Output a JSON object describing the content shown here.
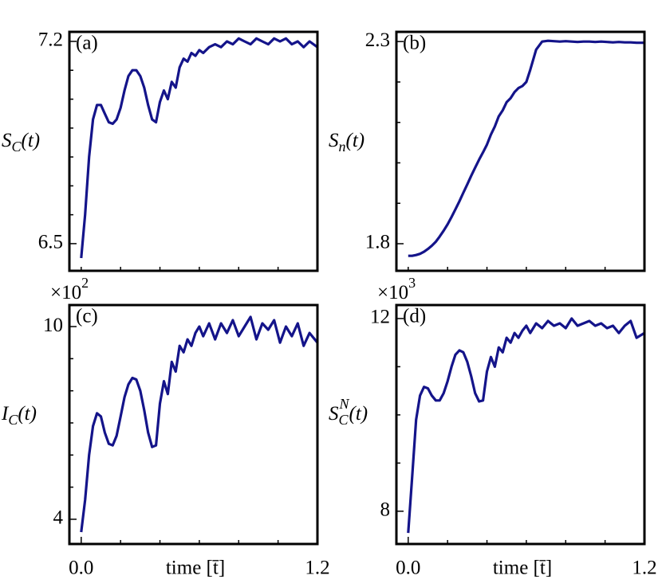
{
  "chart_data": [
    {
      "type": "line",
      "annotation": "(a)",
      "ylabel": [
        {
          "text": "S",
          "pos": "base"
        },
        {
          "text": "C",
          "pos": "sub"
        },
        {
          "text": "(t)",
          "pos": "base"
        }
      ],
      "xlim": [
        -0.06,
        1.2
      ],
      "xminorticks": [
        0,
        0.2,
        0.4,
        0.6,
        0.8,
        1.0,
        1.2
      ],
      "ylim": [
        6.406,
        7.233
      ],
      "yticks": [
        7.2,
        6.5
      ],
      "yminorticks": [
        6.6,
        6.7,
        6.8,
        6.9,
        7.0,
        7.1
      ],
      "color": "#14148a",
      "x": [
        0,
        0.02,
        0.04,
        0.06,
        0.08,
        0.1,
        0.12,
        0.14,
        0.16,
        0.18,
        0.2,
        0.22,
        0.24,
        0.26,
        0.28,
        0.3,
        0.32,
        0.34,
        0.36,
        0.38,
        0.4,
        0.42,
        0.44,
        0.46,
        0.48,
        0.5,
        0.52,
        0.54,
        0.56,
        0.58,
        0.6,
        0.62,
        0.65,
        0.68,
        0.71,
        0.74,
        0.77,
        0.8,
        0.83,
        0.86,
        0.89,
        0.92,
        0.95,
        0.98,
        1.01,
        1.04,
        1.07,
        1.1,
        1.13,
        1.16,
        1.2
      ],
      "values": [
        6.45,
        6.6,
        6.8,
        6.93,
        6.98,
        6.98,
        6.95,
        6.92,
        6.915,
        6.93,
        6.97,
        7.03,
        7.08,
        7.1,
        7.1,
        7.08,
        7.04,
        6.98,
        6.93,
        6.92,
        6.99,
        7.03,
        7.0,
        7.06,
        7.04,
        7.11,
        7.14,
        7.13,
        7.16,
        7.15,
        7.17,
        7.16,
        7.18,
        7.19,
        7.18,
        7.2,
        7.19,
        7.21,
        7.2,
        7.19,
        7.21,
        7.2,
        7.19,
        7.21,
        7.2,
        7.21,
        7.19,
        7.2,
        7.18,
        7.2,
        7.18
      ]
    },
    {
      "type": "line",
      "annotation": "(b)",
      "ylabel": [
        {
          "text": "S",
          "pos": "base"
        },
        {
          "text": "n",
          "pos": "sub"
        },
        {
          "text": "(t)",
          "pos": "base"
        }
      ],
      "xlim": [
        -0.06,
        1.2
      ],
      "xminorticks": [
        0,
        0.2,
        0.4,
        0.6,
        0.8,
        1.0,
        1.2
      ],
      "ylim": [
        1.733,
        2.324
      ],
      "yticks": [
        2.3,
        1.8
      ],
      "yminorticks": [
        1.9,
        2.0,
        2.1,
        2.2
      ],
      "color": "#14148a",
      "x": [
        0,
        0.02,
        0.04,
        0.06,
        0.08,
        0.1,
        0.12,
        0.14,
        0.16,
        0.18,
        0.2,
        0.22,
        0.24,
        0.26,
        0.28,
        0.3,
        0.32,
        0.34,
        0.36,
        0.38,
        0.4,
        0.42,
        0.44,
        0.46,
        0.48,
        0.5,
        0.52,
        0.54,
        0.56,
        0.58,
        0.6,
        0.62,
        0.65,
        0.68,
        0.71,
        0.74,
        0.77,
        0.8,
        0.83,
        0.86,
        0.89,
        0.92,
        0.95,
        0.98,
        1.01,
        1.04,
        1.07,
        1.1,
        1.13,
        1.16,
        1.2
      ],
      "values": [
        1.77,
        1.77,
        1.772,
        1.775,
        1.78,
        1.787,
        1.795,
        1.805,
        1.818,
        1.832,
        1.848,
        1.866,
        1.885,
        1.905,
        1.926,
        1.947,
        1.968,
        1.988,
        2.008,
        2.026,
        2.045,
        2.07,
        2.09,
        2.115,
        2.13,
        2.15,
        2.16,
        2.175,
        2.185,
        2.19,
        2.2,
        2.23,
        2.28,
        2.3,
        2.302,
        2.301,
        2.3,
        2.301,
        2.3,
        2.299,
        2.3,
        2.3,
        2.299,
        2.3,
        2.299,
        2.298,
        2.299,
        2.298,
        2.298,
        2.297,
        2.297
      ]
    },
    {
      "type": "line",
      "annotation": "(c)",
      "offset_text": [
        {
          "text": "×10",
          "pos": "base"
        },
        {
          "text": "2",
          "pos": "sup"
        }
      ],
      "ylabel": [
        {
          "text": "I",
          "pos": "base"
        },
        {
          "text": "C",
          "pos": "sub"
        },
        {
          "text": "(t)",
          "pos": "base"
        }
      ],
      "xlabel": "time [t̄]",
      "xlim": [
        -0.06,
        1.2
      ],
      "xticks": [
        {
          "value": 0,
          "label": "0.0"
        },
        1.2
      ],
      "xminorticks": [
        0.2,
        0.4,
        0.6,
        0.8,
        1.0
      ],
      "ylim": [
        3.23,
        10.67
      ],
      "yticks": [
        10,
        4
      ],
      "yminorticks": [
        5,
        6,
        7,
        8,
        9
      ],
      "color": "#14148a",
      "x": [
        0,
        0.02,
        0.04,
        0.06,
        0.08,
        0.1,
        0.12,
        0.14,
        0.16,
        0.18,
        0.2,
        0.22,
        0.24,
        0.26,
        0.28,
        0.3,
        0.32,
        0.34,
        0.36,
        0.38,
        0.4,
        0.42,
        0.44,
        0.46,
        0.48,
        0.5,
        0.52,
        0.54,
        0.56,
        0.58,
        0.6,
        0.62,
        0.65,
        0.68,
        0.71,
        0.74,
        0.77,
        0.8,
        0.83,
        0.86,
        0.89,
        0.92,
        0.95,
        0.98,
        1.01,
        1.04,
        1.07,
        1.1,
        1.13,
        1.16,
        1.2
      ],
      "values": [
        3.6,
        4.6,
        6.0,
        6.9,
        7.3,
        7.2,
        6.7,
        6.35,
        6.3,
        6.6,
        7.2,
        7.8,
        8.2,
        8.4,
        8.35,
        8.0,
        7.4,
        6.7,
        6.25,
        6.3,
        7.6,
        8.3,
        7.9,
        8.9,
        8.6,
        9.4,
        9.2,
        9.6,
        9.4,
        9.8,
        10.0,
        9.7,
        10.1,
        9.6,
        10.1,
        9.8,
        10.2,
        9.7,
        10.0,
        10.3,
        9.6,
        10.1,
        9.9,
        10.2,
        9.5,
        10.0,
        9.7,
        10.1,
        9.4,
        9.8,
        9.5
      ]
    },
    {
      "type": "line",
      "annotation": "(d)",
      "offset_text": [
        {
          "text": "×10",
          "pos": "base"
        },
        {
          "text": "3",
          "pos": "sup"
        }
      ],
      "ylabel": [
        {
          "text": "S",
          "pos": "base"
        },
        {
          "text": "C",
          "pos": "sub"
        },
        {
          "text": "N",
          "pos": "sup"
        },
        {
          "text": "(t)",
          "pos": "base"
        }
      ],
      "xlabel": "time [t̄]",
      "xlim": [
        -0.06,
        1.2
      ],
      "xticks": [
        {
          "value": 0,
          "label": "0.0"
        },
        1.2
      ],
      "xminorticks": [
        0.2,
        0.4,
        0.6,
        0.8,
        1.0
      ],
      "ylim": [
        7.32,
        12.28
      ],
      "yticks": [
        12,
        8
      ],
      "yminorticks": [
        9,
        10,
        11
      ],
      "color": "#14148a",
      "x": [
        0,
        0.02,
        0.04,
        0.06,
        0.08,
        0.1,
        0.12,
        0.14,
        0.16,
        0.18,
        0.2,
        0.22,
        0.24,
        0.26,
        0.28,
        0.3,
        0.32,
        0.34,
        0.36,
        0.38,
        0.4,
        0.42,
        0.44,
        0.46,
        0.48,
        0.5,
        0.52,
        0.54,
        0.56,
        0.58,
        0.6,
        0.62,
        0.65,
        0.68,
        0.71,
        0.74,
        0.77,
        0.8,
        0.83,
        0.86,
        0.89,
        0.92,
        0.95,
        0.98,
        1.01,
        1.04,
        1.07,
        1.1,
        1.13,
        1.16,
        1.2
      ],
      "values": [
        7.55,
        8.7,
        9.9,
        10.4,
        10.58,
        10.55,
        10.4,
        10.3,
        10.3,
        10.45,
        10.7,
        11.0,
        11.25,
        11.34,
        11.3,
        11.1,
        10.8,
        10.45,
        10.28,
        10.3,
        10.9,
        11.2,
        11.0,
        11.4,
        11.3,
        11.6,
        11.5,
        11.7,
        11.6,
        11.75,
        11.85,
        11.7,
        11.9,
        11.8,
        11.95,
        11.85,
        11.9,
        11.8,
        12.0,
        11.85,
        11.9,
        11.95,
        11.85,
        11.9,
        11.8,
        11.85,
        11.7,
        11.85,
        11.95,
        11.6,
        11.7
      ]
    }
  ]
}
